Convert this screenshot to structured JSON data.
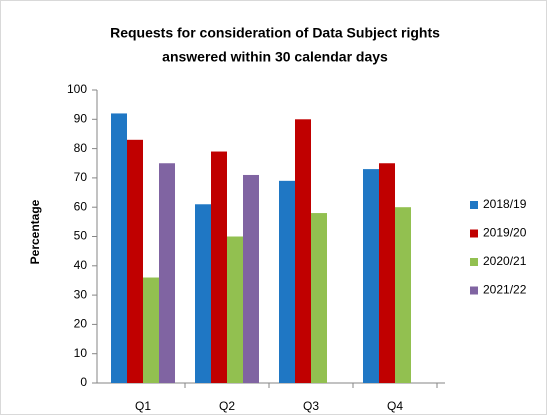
{
  "chart_data": {
    "type": "bar",
    "title": [
      "Requests for consideration of Data Subject rights",
      "answered within 30 calendar days"
    ],
    "y_label": "Percentage",
    "categories": [
      "Q1",
      "Q2",
      "Q3",
      "Q4"
    ],
    "series": [
      {
        "name": "2018/19",
        "color": "#1f77c4",
        "values": [
          92,
          61,
          69,
          73
        ]
      },
      {
        "name": "2019/20",
        "color": "#c00000",
        "values": [
          83,
          79,
          90,
          75
        ]
      },
      {
        "name": "2020/21",
        "color": "#92c050",
        "values": [
          36,
          50,
          58,
          60
        ]
      },
      {
        "name": "2021/22",
        "color": "#8064a2",
        "values": [
          75,
          71,
          null,
          null
        ]
      }
    ],
    "ylim": [
      0,
      100
    ],
    "yticks": [
      0,
      10,
      20,
      30,
      40,
      50,
      60,
      70,
      80,
      90,
      100
    ],
    "grid": false,
    "legend": "right"
  }
}
